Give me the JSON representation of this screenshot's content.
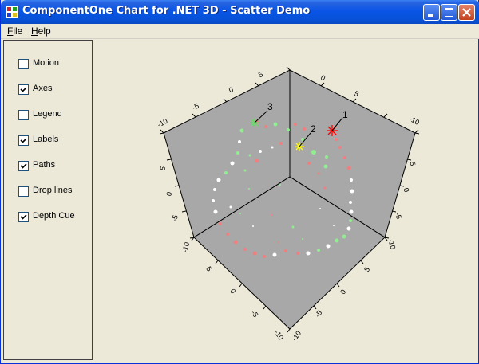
{
  "window": {
    "title": "ComponentOne Chart for .NET 3D - Scatter Demo"
  },
  "menubar": {
    "items": [
      {
        "label": "File",
        "accel": "F"
      },
      {
        "label": "Help",
        "accel": "H"
      }
    ]
  },
  "options": [
    {
      "label": "Motion",
      "checked": false
    },
    {
      "label": "Axes",
      "checked": true
    },
    {
      "label": "Legend",
      "checked": false
    },
    {
      "label": "Labels",
      "checked": true
    },
    {
      "label": "Paths",
      "checked": true
    },
    {
      "label": "Drop lines",
      "checked": false
    },
    {
      "label": "Depth Cue",
      "checked": true
    }
  ],
  "chart": {
    "plane_color": "#a8a8a8",
    "axis_ticks_left_top": [
      "-10",
      "-5",
      "0",
      "5"
    ],
    "axis_ticks_right_top": [
      "0",
      "5",
      "-10"
    ],
    "axis_ticks_left_side": [
      "5",
      "0",
      "-5",
      "-10"
    ],
    "axis_ticks_right_side": [
      "5",
      "0",
      "-5",
      "-10"
    ],
    "axis_ticks_bottom_left": [
      "5",
      "0",
      "-5",
      "-10"
    ],
    "axis_ticks_bottom_right": [
      "-10",
      "-5",
      "0",
      "5"
    ],
    "point_labels": [
      "1",
      "2",
      "3"
    ],
    "colors": {
      "red": "#f08080",
      "green": "#90ee90",
      "white": "#ffffff",
      "marker_red": "#ff0000",
      "marker_yellow": "#ffff00",
      "marker_green": "#66dd66"
    }
  }
}
